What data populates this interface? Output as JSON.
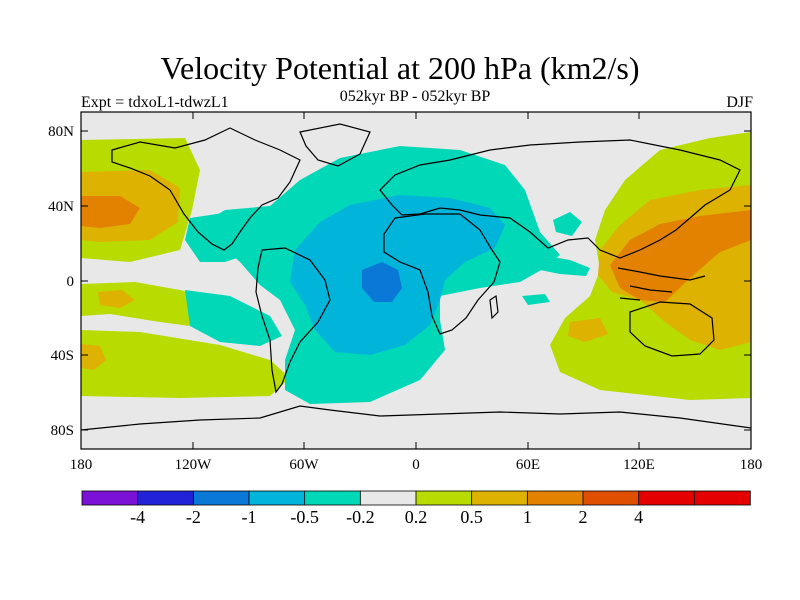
{
  "header": {
    "title": "Velocity Potential at 200 hPa (km2/s)",
    "subtitle": "052kyr BP - 052kyr BP",
    "experiment": "Expt = tdxoL1-tdwzL1",
    "season": "DJF"
  },
  "map": {
    "lat_ticks": [
      "80N",
      "40N",
      "0",
      "40S",
      "80S"
    ],
    "lon_ticks": [
      "180",
      "120W",
      "60W",
      "0",
      "60E",
      "120E",
      "180"
    ]
  },
  "colorbar": {
    "colors": [
      "#7b11d6",
      "#2222d8",
      "#0a78d6",
      "#00b4da",
      "#00d8b8",
      "#e8e8e8",
      "#b8dc00",
      "#ddb200",
      "#e28200",
      "#e04e00",
      "#e40000",
      "#e40000"
    ],
    "labels": [
      "-4",
      "-2",
      "-1",
      "-0.5",
      "-0.2",
      "0.2",
      "0.5",
      "1",
      "2",
      "4"
    ]
  },
  "colors": {
    "ocean_neutral": "#e8e8e8",
    "coast": "#000000"
  }
}
